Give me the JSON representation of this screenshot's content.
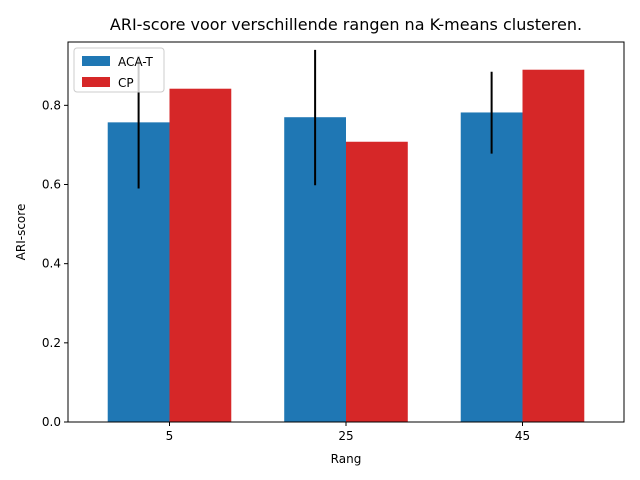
{
  "chart_data": {
    "type": "bar",
    "title": "ARI-score voor verschillende rangen na K-means clusteren.",
    "xlabel": "Rang",
    "ylabel": "ARI-score",
    "categories": [
      "5",
      "25",
      "45"
    ],
    "ylim": [
      0,
      0.96
    ],
    "yticks": [
      "0.0",
      "0.2",
      "0.4",
      "0.6",
      "0.8"
    ],
    "legend_position": "top-left",
    "grid": false,
    "series": [
      {
        "name": "ACA-T",
        "color": "#1f77b4",
        "values": [
          0.757,
          0.77,
          0.782
        ],
        "error_low": [
          0.59,
          0.598,
          0.678
        ],
        "error_high": [
          0.925,
          0.94,
          0.885
        ]
      },
      {
        "name": "CP",
        "color": "#d62728",
        "values": [
          0.842,
          0.708,
          0.89
        ]
      }
    ]
  }
}
